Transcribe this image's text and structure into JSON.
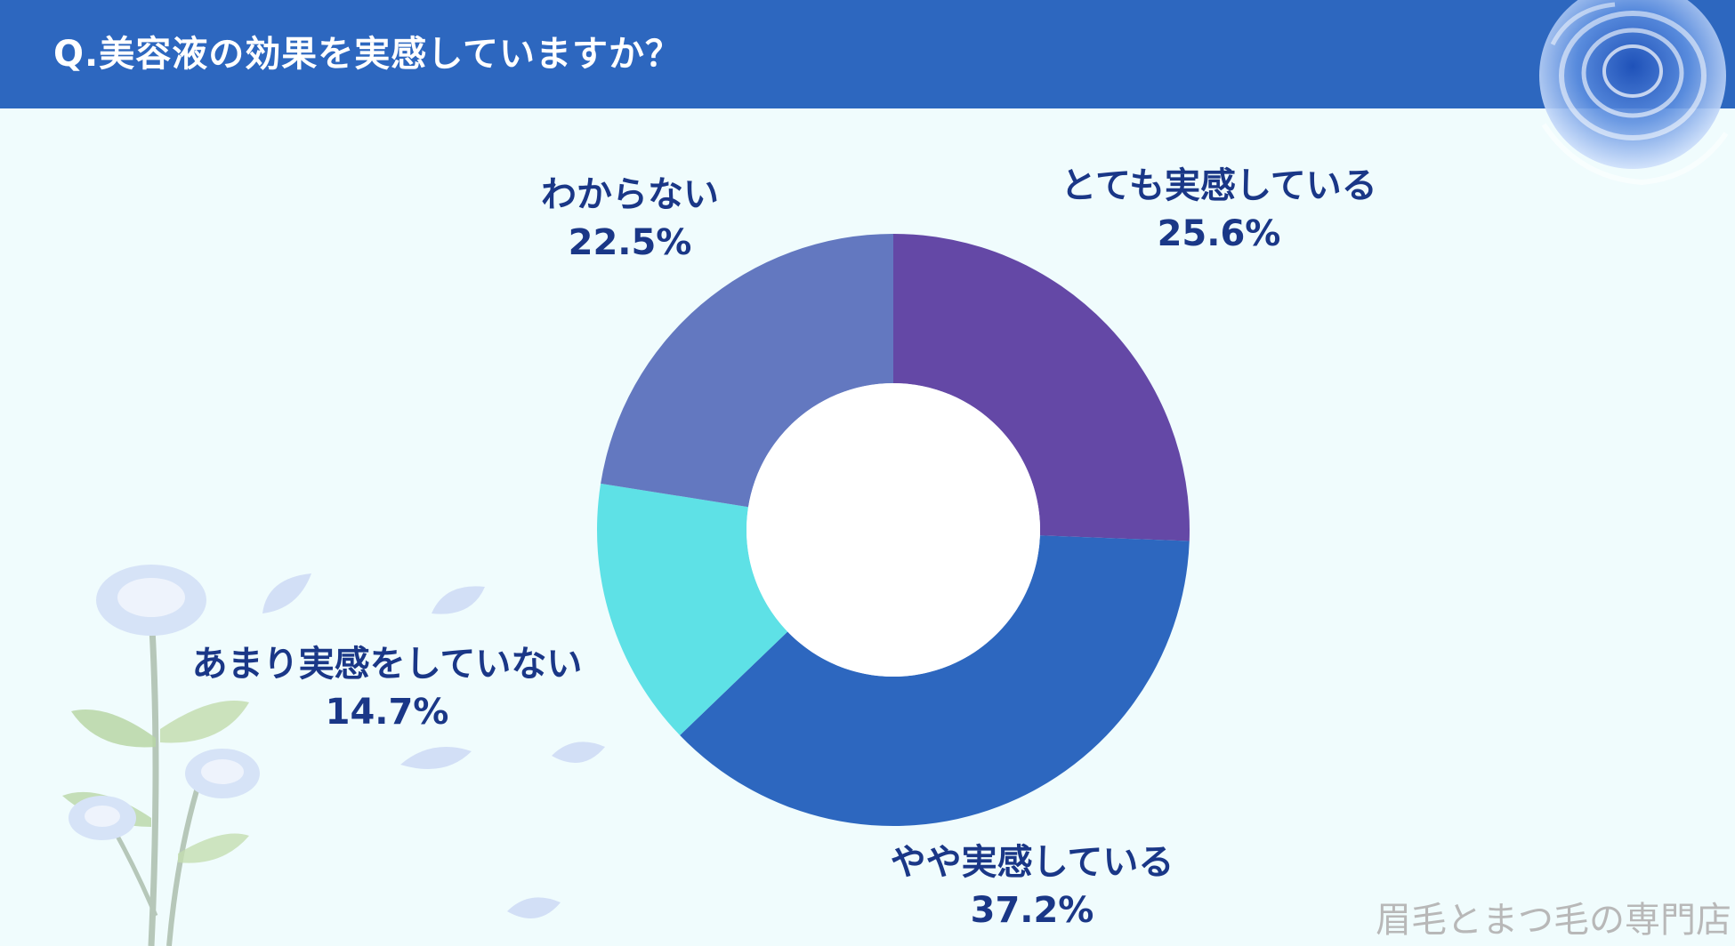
{
  "header": {
    "title": "Q.美容液の効果を実感していますか？"
  },
  "colors": {
    "header_bg": "#2d67bf",
    "background": "#f0fcfd",
    "label_text": "#1a3787",
    "watermark": "#b8b8b8"
  },
  "chart_data": {
    "type": "pie",
    "style": "donut",
    "title": "Q.美容液の効果を実感していますか？",
    "slices": [
      {
        "label": "とても実感している",
        "value": 25.6,
        "display": "25.6%",
        "color": "#6448a6"
      },
      {
        "label": "やや実感している",
        "value": 37.2,
        "display": "37.2%",
        "color": "#2d67bf"
      },
      {
        "label": "あまり実感をしていない",
        "value": 14.7,
        "display": "14.7%",
        "color": "#5ee1e6"
      },
      {
        "label": "わからない",
        "value": 22.5,
        "display": "22.5%",
        "color": "#6378c0"
      }
    ],
    "start_angle_deg": 0,
    "direction": "clockwise",
    "legend": "none"
  },
  "decor": {
    "top_right": "blue-rose-illustration",
    "bottom_left": "blue-rose-stems-illustration"
  },
  "watermark": {
    "text": "眉毛とまつ毛の専門店"
  }
}
